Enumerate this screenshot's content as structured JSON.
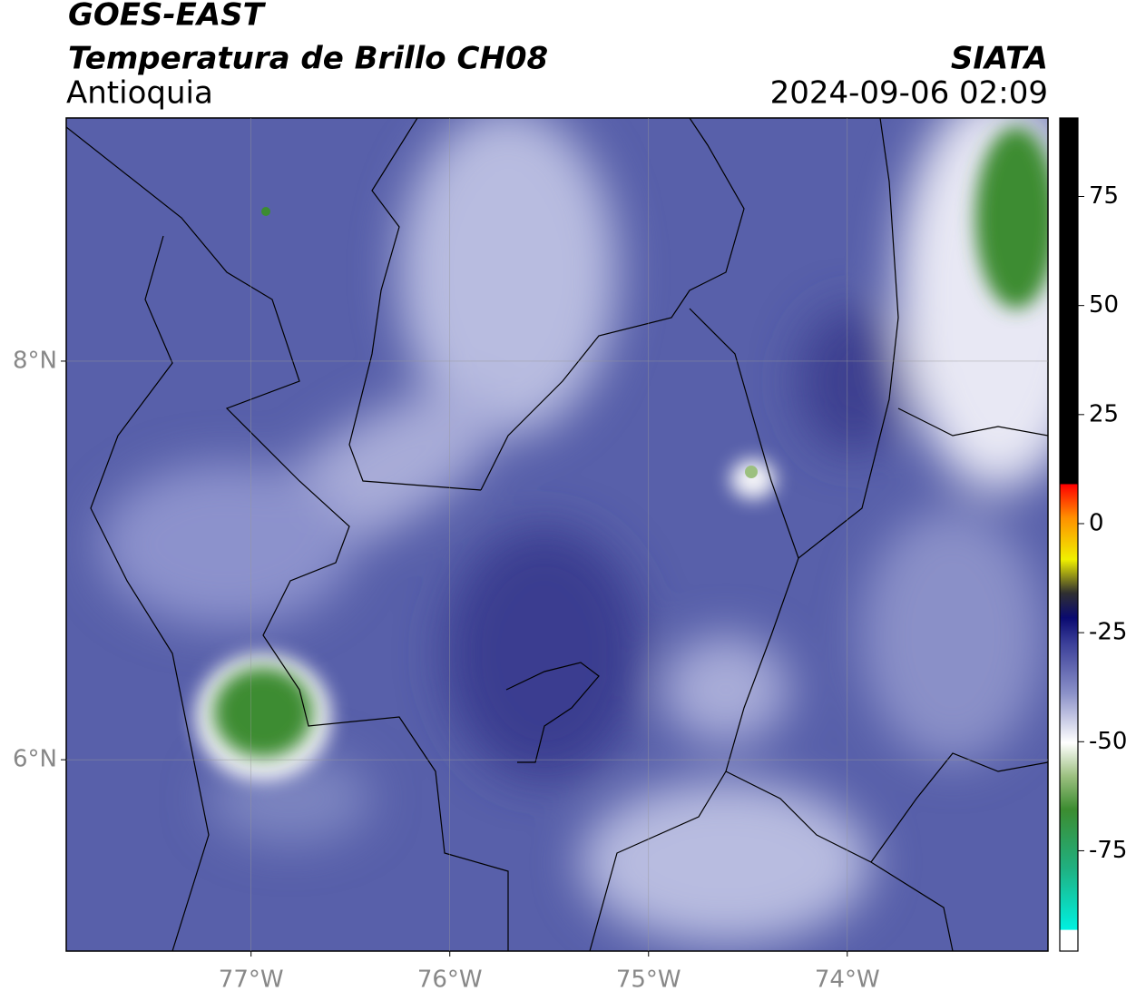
{
  "header": {
    "title": "GOES-EAST",
    "subtitle": "Temperatura de Brillo CH08",
    "region": "Antioquia",
    "source": "SIATA",
    "datetime": "2024-09-06 02:09"
  },
  "map": {
    "xlim": [
      -77.93,
      -72.99
    ],
    "ylim": [
      5.04,
      9.22
    ],
    "xticks": [
      {
        "value": -77,
        "label": "77°W"
      },
      {
        "value": -76,
        "label": "76°W"
      },
      {
        "value": -75,
        "label": "75°W"
      },
      {
        "value": -74,
        "label": "74°W"
      }
    ],
    "yticks": [
      {
        "value": 8,
        "label": "8°N"
      },
      {
        "value": 6,
        "label": "6°N"
      }
    ],
    "grid": true
  },
  "colorbar": {
    "lim": [
      -98,
      93
    ],
    "ticks": [
      75,
      50,
      25,
      0,
      -25,
      -50,
      -75
    ]
  }
}
